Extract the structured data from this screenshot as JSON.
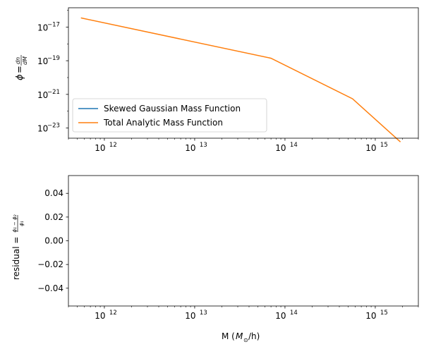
{
  "chart_data": [
    {
      "type": "line",
      "xscale": "log",
      "yscale": "log",
      "xlim": [
        400000000000.0,
        3000000000000000.0
      ],
      "ylim": [
        2.5e-24,
        1.4e-16
      ],
      "ylabel": "ϕ = dn/dM",
      "xlabel": "",
      "legend": "lower-left",
      "x_ticks": [
        {
          "value": 1000000000000.0,
          "base": "10",
          "exp": "12"
        },
        {
          "value": 10000000000000.0,
          "base": "10",
          "exp": "13"
        },
        {
          "value": 100000000000000.0,
          "base": "10",
          "exp": "14"
        },
        {
          "value": 1000000000000000.0,
          "base": "10",
          "exp": "15"
        }
      ],
      "y_ticks": [
        {
          "value": 1e-17,
          "base": "10",
          "exp": "−17"
        },
        {
          "value": 1e-19,
          "base": "10",
          "exp": "−19"
        },
        {
          "value": 1e-21,
          "base": "10",
          "exp": "−21"
        },
        {
          "value": 1e-23,
          "base": "10",
          "exp": "−23"
        }
      ],
      "series": [
        {
          "name": "Skewed Gaussian Mass Function",
          "color": "#1f77b4",
          "x": [],
          "y": []
        },
        {
          "name": "Total Analytic Mass Function",
          "color": "#ff7f0e",
          "x": [
            550000000000.0,
            70000000000000.0,
            560000000000000.0,
            1900000000000000.0
          ],
          "y": [
            3.5e-17,
            1.4e-19,
            5.5e-22,
            1.5e-24
          ]
        }
      ]
    },
    {
      "type": "line",
      "xscale": "log",
      "yscale": "linear",
      "xlim": [
        400000000000.0,
        3000000000000000.0
      ],
      "ylim": [
        -0.055,
        0.055
      ],
      "ylabel": "residual = (ϕ₁ − ϕ₂)/ϕ₁",
      "xlabel": "M (M⊙/h)",
      "x_ticks": [
        {
          "value": 1000000000000.0,
          "base": "10",
          "exp": "12"
        },
        {
          "value": 10000000000000.0,
          "base": "10",
          "exp": "13"
        },
        {
          "value": 100000000000000.0,
          "base": "10",
          "exp": "14"
        },
        {
          "value": 1000000000000000.0,
          "base": "10",
          "exp": "15"
        }
      ],
      "y_ticks": [
        {
          "value": 0.04,
          "label": "0.04"
        },
        {
          "value": 0.02,
          "label": "0.02"
        },
        {
          "value": 0.0,
          "label": "0.00"
        },
        {
          "value": -0.02,
          "label": "−0.02"
        },
        {
          "value": -0.04,
          "label": "−0.04"
        }
      ],
      "series": []
    }
  ]
}
